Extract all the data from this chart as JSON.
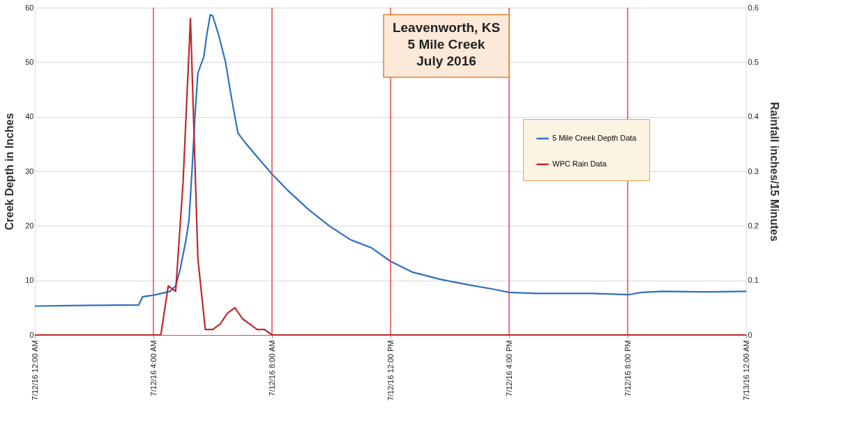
{
  "chart_data": {
    "type": "line",
    "title": "Leavenworth, KS\n5 Mile Creek\nJuly 2016",
    "ylabel": "Creek Depth in Inches",
    "y2label": "Rainfall inches/15 Minutes",
    "xlim": [
      "2016-07-12T00:00",
      "2016-07-13T00:00"
    ],
    "xticks": [
      {
        "value": "2016-07-12T00:00",
        "label": "7/12/16 12:00 AM"
      },
      {
        "value": "2016-07-12T04:00",
        "label": "7/12/16 4:00 AM"
      },
      {
        "value": "2016-07-12T08:00",
        "label": "7/12/16 8:00 AM"
      },
      {
        "value": "2016-07-12T12:00",
        "label": "7/12/16 12:00 PM"
      },
      {
        "value": "2016-07-12T16:00",
        "label": "7/12/16 4:00 PM"
      },
      {
        "value": "2016-07-12T20:00",
        "label": "7/12/16 8:00 PM"
      },
      {
        "value": "2016-07-13T00:00",
        "label": "7/13/16 12:00 AM"
      }
    ],
    "ylim": [
      0,
      60
    ],
    "yticks": [
      0,
      10,
      20,
      30,
      40,
      50,
      60
    ],
    "y2lim": [
      0,
      0.6
    ],
    "y2ticks": [
      {
        "value": 0,
        "label": "0"
      },
      0.1,
      0.2,
      0.3,
      0.4,
      0.5,
      0.6
    ],
    "grid": "y",
    "legend": "right",
    "marker": "none",
    "line_style": "solid",
    "ref_lines": [
      {
        "axis": "x",
        "value": "2016-07-12T04:00",
        "color": "#e0474c"
      },
      {
        "axis": "x",
        "value": "2016-07-12T08:00",
        "color": "#e0474c"
      },
      {
        "axis": "x",
        "value": "2016-07-12T12:00",
        "color": "#e0474c"
      },
      {
        "axis": "x",
        "value": "2016-07-12T16:00",
        "color": "#e0474c"
      },
      {
        "axis": "x",
        "value": "2016-07-12T20:00",
        "color": "#e0474c"
      }
    ],
    "series": [
      {
        "name": "5 Mile Creek Depth Data",
        "color": "#2e6fc0",
        "x": [
          "2016-07-12T00:00",
          "2016-07-12T01:30",
          "2016-07-12T03:30",
          "2016-07-12T03:38",
          "2016-07-12T04:00",
          "2016-07-12T04:34",
          "2016-07-12T04:45",
          "2016-07-12T04:54",
          "2016-07-12T05:05",
          "2016-07-12T05:12",
          "2016-07-12T05:18",
          "2016-07-12T05:24",
          "2016-07-12T05:30",
          "2016-07-12T05:42",
          "2016-07-12T05:48",
          "2016-07-12T05:55",
          "2016-07-12T06:00",
          "2016-07-12T06:12",
          "2016-07-12T06:26",
          "2016-07-12T06:37",
          "2016-07-12T06:51",
          "2016-07-12T07:08",
          "2016-07-12T07:36",
          "2016-07-12T08:00",
          "2016-07-12T08:32",
          "2016-07-12T09:14",
          "2016-07-12T09:56",
          "2016-07-12T10:38",
          "2016-07-12T11:21",
          "2016-07-12T12:00",
          "2016-07-12T12:45",
          "2016-07-12T13:41",
          "2016-07-12T14:37",
          "2016-07-12T15:34",
          "2016-07-12T16:00",
          "2016-07-12T16:58",
          "2016-07-12T18:50",
          "2016-07-12T20:03",
          "2016-07-12T20:28",
          "2016-07-12T21:10",
          "2016-07-12T22:34",
          "2016-07-13T00:00"
        ],
        "values": [
          5.3,
          5.4,
          5.5,
          7.0,
          7.3,
          8.0,
          9,
          12,
          17,
          21,
          30,
          40,
          48,
          51,
          55,
          58.7,
          58.5,
          55,
          50,
          44,
          37,
          35,
          32,
          29.5,
          26.5,
          23,
          20,
          17.5,
          16,
          13.5,
          11.5,
          10.2,
          9.2,
          8.3,
          7.8,
          7.6,
          7.6,
          7.4,
          7.8,
          8.0,
          7.9,
          8.0
        ]
      },
      {
        "name": "WPC Rain Data",
        "color": "#c0272d",
        "axis": "y2",
        "x": [
          "2016-07-12T00:00",
          "2016-07-12T04:15",
          "2016-07-12T04:30",
          "2016-07-12T04:45",
          "2016-07-12T05:00",
          "2016-07-12T05:15",
          "2016-07-12T05:30",
          "2016-07-12T05:45",
          "2016-07-12T06:00",
          "2016-07-12T06:15",
          "2016-07-12T06:30",
          "2016-07-12T06:45",
          "2016-07-12T07:00",
          "2016-07-12T07:15",
          "2016-07-12T07:30",
          "2016-07-12T07:45",
          "2016-07-12T08:00",
          "2016-07-13T00:00"
        ],
        "values": [
          0,
          0,
          0.09,
          0.08,
          0.28,
          0.58,
          0.14,
          0.01,
          0.01,
          0.02,
          0.04,
          0.05,
          0.03,
          0.02,
          0.01,
          0.01,
          0,
          0
        ]
      }
    ]
  }
}
